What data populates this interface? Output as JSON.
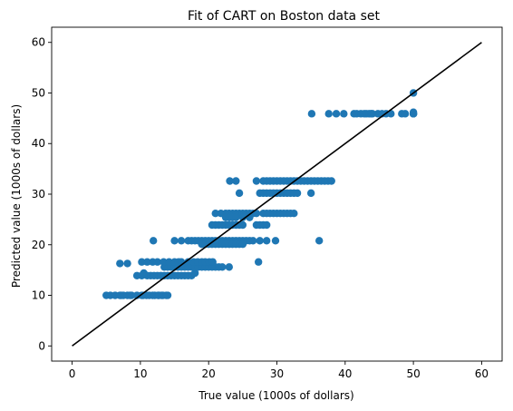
{
  "chart_data": {
    "type": "scatter",
    "title": "Fit of CART on Boston data set",
    "xlabel": "True value (1000s of dollars)",
    "ylabel": "Predicted value (1000s of dollars)",
    "xlim": [
      -3,
      63
    ],
    "ylim": [
      -3,
      63
    ],
    "xticks": [
      0,
      10,
      20,
      30,
      40,
      50,
      60
    ],
    "yticks": [
      0,
      10,
      20,
      30,
      40,
      50,
      60
    ],
    "grid": false,
    "point_color": "#1f77b4",
    "line_color": "#000000",
    "reference_line": {
      "x": [
        0,
        60
      ],
      "y": [
        0,
        60
      ]
    },
    "series": [
      {
        "x": [
          5.0,
          5.6,
          6.3,
          7.0,
          7.2,
          7.5,
          8.1,
          8.5,
          8.7,
          9.5,
          10.2,
          10.4,
          10.9,
          11.3,
          11.8,
          12.1,
          12.6,
          12.7,
          13.1,
          13.3,
          13.8,
          14.0,
          7.0,
          8.1,
          9.5,
          10.2,
          10.5,
          11.0,
          11.5,
          12.0,
          12.5,
          13.0,
          13.5,
          14.0,
          14.5,
          15.0,
          15.5,
          16.0,
          16.5,
          17.0,
          17.5,
          18.0,
          13.5,
          14.0,
          14.5,
          15.0,
          15.5,
          16.0,
          16.5,
          17.0,
          17.5,
          18.0,
          18.5,
          19.0,
          19.5,
          20.0,
          20.5,
          21.0,
          21.5,
          22.0,
          23.0,
          10.2,
          11.0,
          11.8,
          12.5,
          13.4,
          14.2,
          15.0,
          15.6,
          16.0,
          17.0,
          17.8,
          18.4,
          19.0,
          19.5,
          20.1,
          20.6,
          11.9,
          15.0,
          16.0,
          17.0,
          17.5,
          18.0,
          18.5,
          19.0,
          19.5,
          20.0,
          20.5,
          21.0,
          21.5,
          22.0,
          22.5,
          23.0,
          23.5,
          24.0,
          24.5,
          25.0,
          25.5,
          26.0,
          26.5,
          27.5,
          28.5,
          29.8,
          19.0,
          19.5,
          20.0,
          20.5,
          21.0,
          21.5,
          22.0,
          22.5,
          23.0,
          23.5,
          24.0,
          24.5,
          25.0,
          20.5,
          21.0,
          21.5,
          22.0,
          22.5,
          23.0,
          23.5,
          24.0,
          24.5,
          25.0,
          27.0,
          27.5,
          28.0,
          28.5,
          21.0,
          21.8,
          22.5,
          23.0,
          23.5,
          24.0,
          24.5,
          25.0,
          25.5,
          26.0,
          26.5,
          27.0,
          28.0,
          28.5,
          29.0,
          29.5,
          30.0,
          30.5,
          31.0,
          31.5,
          32.0,
          32.5,
          22.5,
          23.0,
          23.5,
          24.0,
          25.0,
          26.0,
          24.5,
          27.5,
          28.0,
          28.5,
          29.0,
          29.5,
          30.0,
          30.5,
          31.0,
          31.5,
          32.0,
          32.5,
          33.0,
          35.0,
          27.0,
          28.0,
          28.5,
          29.0,
          29.5,
          30.0,
          30.5,
          31.0,
          31.5,
          32.0,
          32.5,
          33.0,
          33.5,
          34.0,
          34.5,
          35.0,
          35.5,
          36.0,
          36.5,
          37.0,
          37.5,
          38.0,
          23.1,
          24.0,
          27.3,
          36.2,
          35.1,
          37.6,
          38.7,
          39.8,
          41.3,
          41.7,
          42.3,
          42.8,
          43.1,
          43.5,
          43.8,
          44.0,
          44.8,
          45.4,
          46.0,
          46.7,
          48.3,
          48.8,
          50.0,
          50.0,
          50.0,
          50.0,
          50.0
        ],
        "y": [
          10,
          10,
          10,
          10,
          10,
          10,
          10,
          10,
          10,
          10,
          10,
          10,
          10,
          10,
          10,
          10,
          10,
          10,
          10,
          10,
          10,
          10,
          16.3,
          16.3,
          13.9,
          13.9,
          14.4,
          13.9,
          13.9,
          13.9,
          13.9,
          13.9,
          13.9,
          13.9,
          13.9,
          13.9,
          13.9,
          13.9,
          13.9,
          13.9,
          13.9,
          14.4,
          15.6,
          15.6,
          15.6,
          15.6,
          15.6,
          15.6,
          15.6,
          15.6,
          15.6,
          15.6,
          15.6,
          15.6,
          15.6,
          15.6,
          15.6,
          15.6,
          15.6,
          15.6,
          15.6,
          16.6,
          16.6,
          16.6,
          16.6,
          16.6,
          16.6,
          16.6,
          16.6,
          16.6,
          16.6,
          16.6,
          16.6,
          16.6,
          16.6,
          16.6,
          16.6,
          20.8,
          20.8,
          20.8,
          20.8,
          20.8,
          20.8,
          20.8,
          20.8,
          20.8,
          20.8,
          20.8,
          20.8,
          20.8,
          20.8,
          20.8,
          20.8,
          20.8,
          20.8,
          20.8,
          20.8,
          20.8,
          20.8,
          20.8,
          20.8,
          20.8,
          20.8,
          20.1,
          20.1,
          20.1,
          20.1,
          20.1,
          20.1,
          20.1,
          20.1,
          20.1,
          20.1,
          20.1,
          20.1,
          20.1,
          23.9,
          23.9,
          23.9,
          23.9,
          23.9,
          23.9,
          23.9,
          23.9,
          23.9,
          23.9,
          23.9,
          23.9,
          23.9,
          23.9,
          26.2,
          26.2,
          26.2,
          26.2,
          26.2,
          26.2,
          26.2,
          26.2,
          26.2,
          26.2,
          26.2,
          26.2,
          26.2,
          26.2,
          26.2,
          26.2,
          26.2,
          26.2,
          26.2,
          26.2,
          26.2,
          26.2,
          25.4,
          25.4,
          25.4,
          25.4,
          25.4,
          25.4,
          30.2,
          30.2,
          30.2,
          30.2,
          30.2,
          30.2,
          30.2,
          30.2,
          30.2,
          30.2,
          30.2,
          30.2,
          30.2,
          30.2,
          32.6,
          32.6,
          32.6,
          32.6,
          32.6,
          32.6,
          32.6,
          32.6,
          32.6,
          32.6,
          32.6,
          32.6,
          32.6,
          32.6,
          32.6,
          32.6,
          32.6,
          32.6,
          32.6,
          32.6,
          32.6,
          32.6,
          32.6,
          32.6,
          16.6,
          20.8,
          45.9,
          45.9,
          45.9,
          45.9,
          45.9,
          45.9,
          45.9,
          45.9,
          45.9,
          45.9,
          45.9,
          45.9,
          45.9,
          45.9,
          45.9,
          45.9,
          45.9,
          45.9,
          45.9,
          45.9,
          45.9,
          46.2,
          50.0
        ]
      }
    ]
  }
}
